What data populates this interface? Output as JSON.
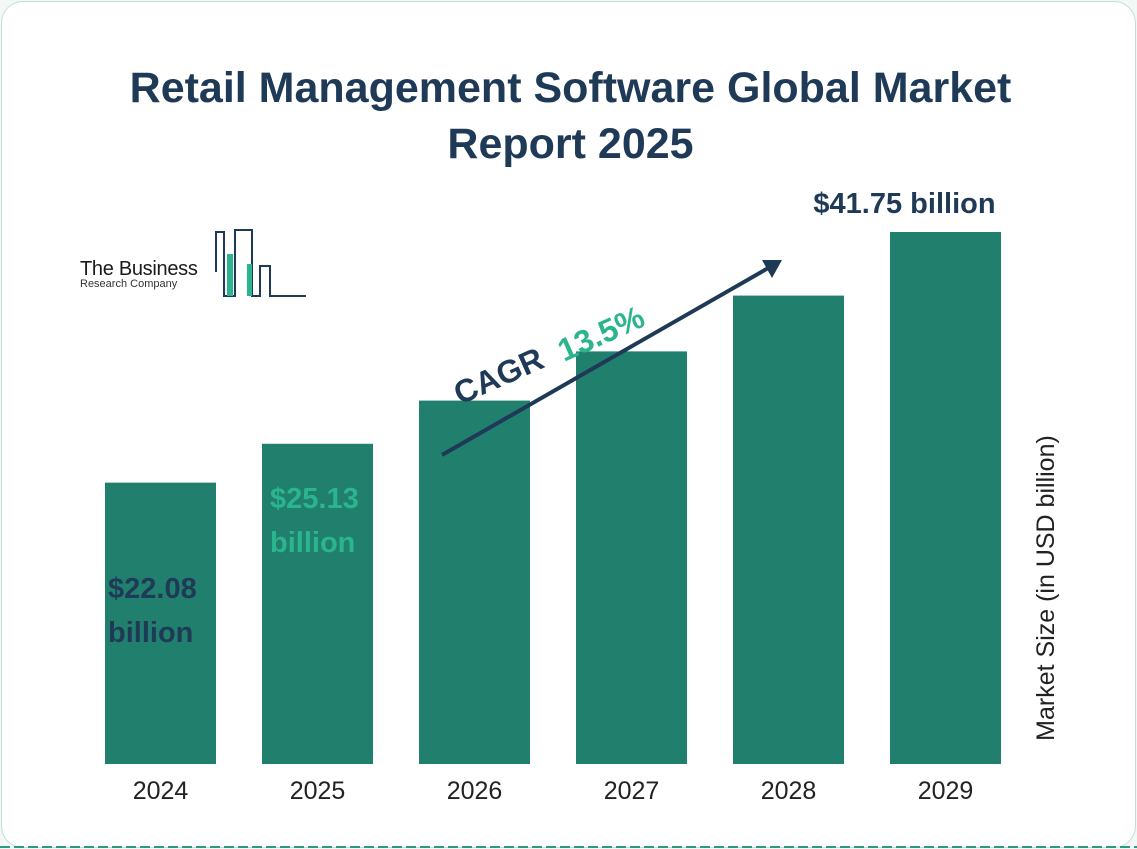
{
  "colors": {
    "bar": "#217f6d",
    "accent": "#2bb58f",
    "text": "#1f3a56"
  },
  "logo": {
    "line1": "The Business",
    "line2": "Research Company"
  },
  "chart_data": {
    "type": "bar",
    "title": "Retail Management Software Global Market Report 2025",
    "categories": [
      "2024",
      "2025",
      "2026",
      "2027",
      "2028",
      "2029"
    ],
    "values": [
      22.08,
      25.13,
      28.52,
      32.38,
      36.76,
      41.75
    ],
    "data_labels": [
      "$22.08 billion",
      "$25.13 billion",
      "",
      "",
      "",
      "$41.75 billion"
    ],
    "ylabel": "Market Size (in USD billion)",
    "xlabel": "",
    "ylim": [
      0,
      41.75
    ],
    "grid": false,
    "annotation": {
      "cagr_label": "CAGR",
      "cagr_value": "13.5%"
    }
  }
}
